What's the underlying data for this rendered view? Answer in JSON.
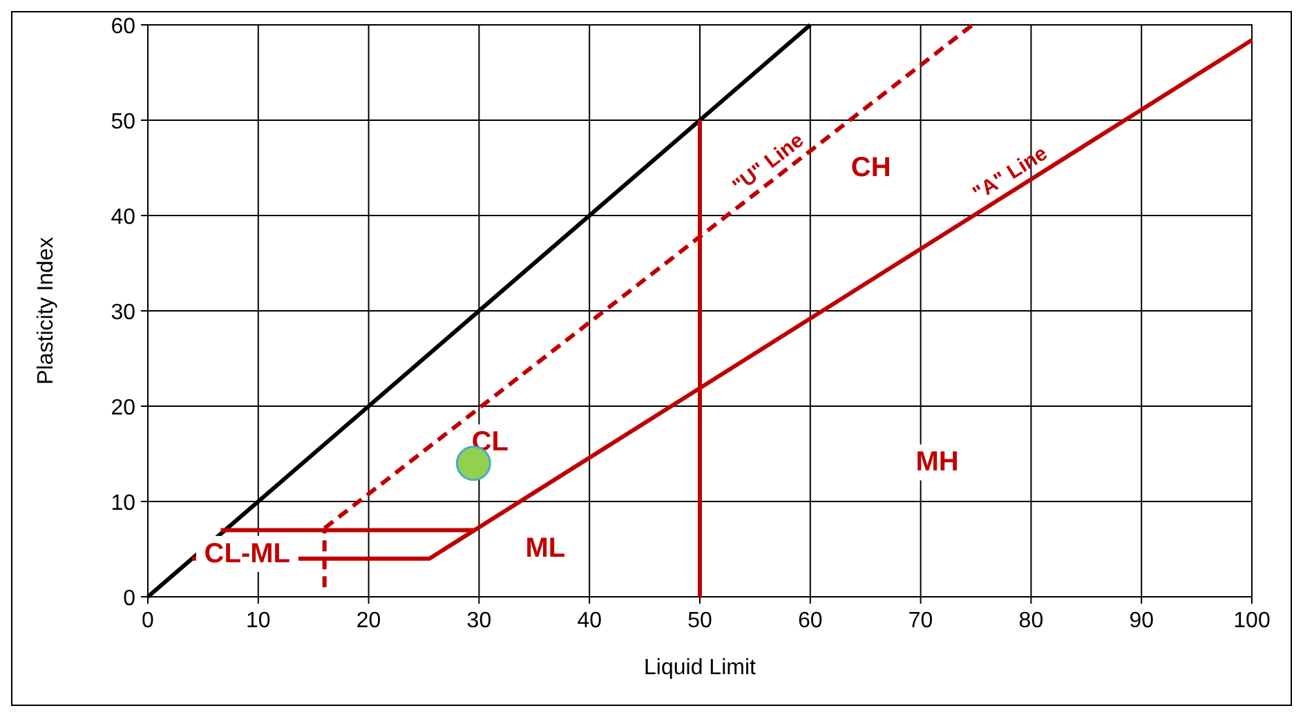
{
  "chart_data": {
    "type": "line",
    "xlabel": "Liquid Limit",
    "ylabel": "Plasticity Index",
    "xlim": [
      0,
      100
    ],
    "ylim": [
      0,
      60
    ],
    "xticks": [
      0,
      10,
      20,
      30,
      40,
      50,
      60,
      70,
      80,
      90,
      100
    ],
    "yticks": [
      0,
      10,
      20,
      30,
      40,
      50,
      60
    ],
    "grid": true,
    "marker": "none",
    "line_style": "solid",
    "series": [
      {
        "color": "#000000",
        "x": [
          0,
          60
        ],
        "values": [
          0,
          60
        ]
      },
      {
        "name": "\"U\" Line",
        "color": "#c00000",
        "line_style": "dashed",
        "x": [
          16,
          74.7
        ],
        "values": [
          7.2,
          60
        ]
      },
      {
        "color": "#c00000",
        "line_style": "dashed",
        "x": [
          16,
          16
        ],
        "values": [
          1,
          7
        ]
      },
      {
        "name": "\"A\" Line",
        "color": "#c00000",
        "x": [
          6.6,
          29.6,
          100
        ],
        "values": [
          7,
          7,
          58.4
        ]
      },
      {
        "color": "#c00000",
        "x": [
          4,
          25.5,
          29.6
        ],
        "values": [
          4,
          4,
          7
        ]
      },
      {
        "color": "#c00000",
        "x": [
          50,
          50
        ],
        "values": [
          0,
          50
        ]
      },
      {
        "type": "scatter",
        "marker": "circle",
        "color": "#92d050",
        "x": [
          29.5
        ],
        "values": [
          14
        ]
      }
    ],
    "annotations": [
      "CL",
      "CH",
      "ML",
      "MH",
      "CL-ML"
    ]
  }
}
